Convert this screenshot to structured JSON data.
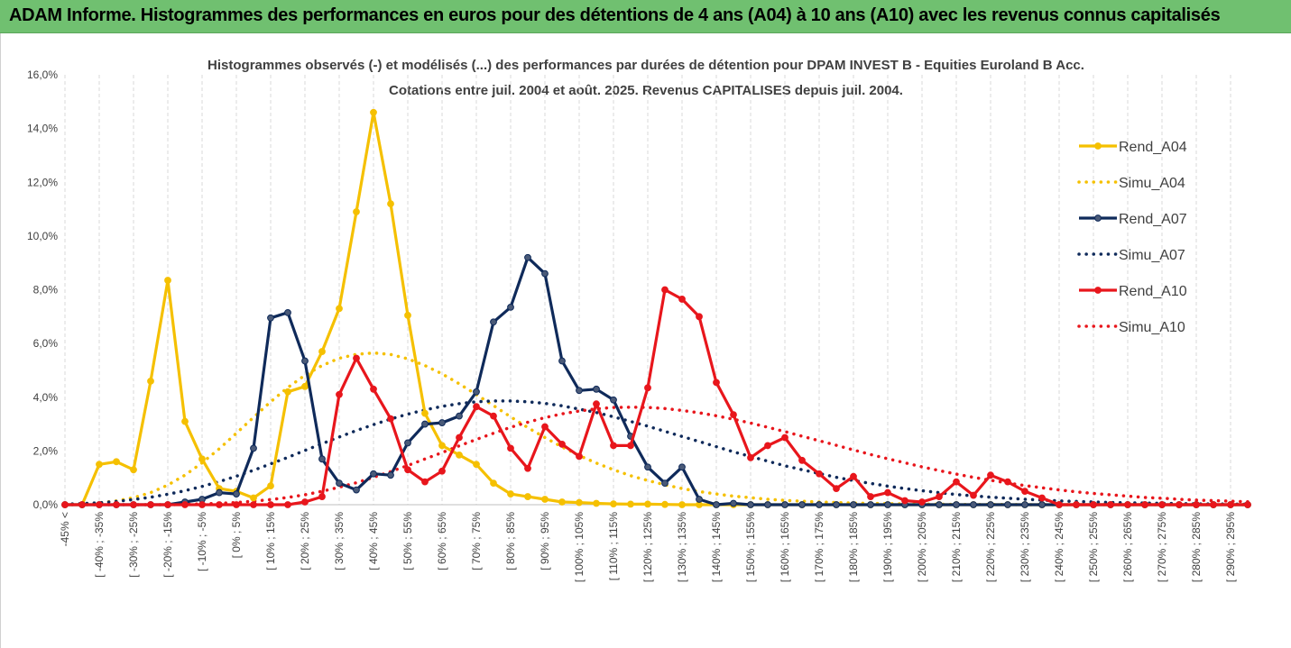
{
  "banner": {
    "title": "ADAM Informe. Histogrammes des performances en euros pour des détentions de 4 ans (A04) à 10 ans (A10) avec les revenus connus capitalisés"
  },
  "chart_data": {
    "type": "line",
    "title": "Histogrammes observés (-) et modélisés (...) des performances par durées de détention pour DPAM INVEST B - Equities Euroland B Acc.",
    "subtitle": "Cotations entre juil. 2004 et août. 2025. Revenus CAPITALISES depuis juil. 2004.",
    "xlabel": "",
    "ylabel": "",
    "ylim": [
      0,
      16
    ],
    "yticks": [
      "0,0%",
      "2,0%",
      "4,0%",
      "6,0%",
      "8,0%",
      "10,0%",
      "12,0%",
      "14,0%",
      "16,0%"
    ],
    "x_tick_labels": [
      "-45% <",
      "[ -40% ; -35%",
      "[ -30% ; -25%",
      "[ -20% ; -15%",
      "[ -10% ; -5%",
      "[ 0% ; 5%",
      "[ 10% ; 15%",
      "[ 20% ; 25%",
      "[ 30% ; 35%",
      "[ 40% ; 45%",
      "[ 50% ; 55%",
      "[ 60% ; 65%",
      "[ 70% ; 75%",
      "[ 80% ; 85%",
      "[ 90% ; 95%",
      "[ 100% ; 105%",
      "[ 110% ; 115%",
      "[ 120% ; 125%",
      "[ 130% ; 135%",
      "[ 140% ; 145%",
      "[ 150% ; 155%",
      "[ 160% ; 165%",
      "[ 170% ; 175%",
      "[ 180% ; 185%",
      "[ 190% ; 195%",
      "[ 200% ; 205%",
      "[ 210% ; 215%",
      "[ 220% ; 225%",
      "[ 230% ; 235%",
      "[ 240% ; 245%",
      "[ 250% ; 255%",
      "[ 260% ; 265%",
      "[ 270% ; 275%",
      "[ 280% ; 285%",
      "[ 290% ; 295%"
    ],
    "categories_count": 70,
    "grid": "vertical-dashed",
    "legend_position": "right",
    "series": [
      {
        "name": "Rend_A04",
        "color": "#f5c000",
        "style": "solid",
        "markers": true,
        "values": [
          0,
          0,
          1.5,
          1.6,
          1.3,
          4.6,
          8.35,
          3.1,
          1.7,
          0.6,
          0.5,
          0.25,
          0.7,
          4.2,
          4.4,
          5.7,
          7.3,
          10.9,
          14.6,
          11.2,
          7.05,
          3.4,
          2.2,
          1.85,
          1.5,
          0.8,
          0.4,
          0.3,
          0.2,
          0.1,
          0.08,
          0.05,
          0.03,
          0.02,
          0.02,
          0.01,
          0,
          0,
          0,
          0,
          0,
          0,
          0,
          0,
          0,
          0,
          0,
          0,
          0,
          0,
          0,
          0,
          0,
          0,
          0,
          0,
          0,
          0,
          0,
          0,
          0,
          0,
          0,
          0,
          0,
          0,
          0,
          0,
          0,
          0
        ]
      },
      {
        "name": "Simu_A04",
        "color": "#f5c000",
        "style": "dotted",
        "markers": false,
        "values": [
          0.01,
          0.03,
          0.07,
          0.14,
          0.26,
          0.45,
          0.73,
          1.1,
          1.56,
          2.08,
          2.66,
          3.25,
          3.83,
          4.36,
          4.82,
          5.18,
          5.45,
          5.6,
          5.65,
          5.59,
          5.43,
          5.18,
          4.87,
          4.5,
          4.1,
          3.69,
          3.27,
          2.87,
          2.5,
          2.15,
          1.83,
          1.55,
          1.3,
          1.08,
          0.9,
          0.74,
          0.6,
          0.49,
          0.4,
          0.32,
          0.26,
          0.2,
          0.16,
          0.13,
          0.1,
          0.08,
          0.06,
          0.05,
          0.04,
          0.03,
          0.02,
          0.02,
          0.01,
          0.01,
          0.01,
          0.01,
          0,
          0,
          0,
          0,
          0,
          0,
          0,
          0,
          0,
          0,
          0,
          0,
          0,
          0
        ]
      },
      {
        "name": "Rend_A07",
        "color": "#0f2a5a",
        "style": "solid",
        "markers": true,
        "values": [
          0,
          0,
          0,
          0,
          0,
          0,
          0,
          0.1,
          0.2,
          0.45,
          0.4,
          2.1,
          6.95,
          7.15,
          5.35,
          1.7,
          0.8,
          0.55,
          1.15,
          1.1,
          2.3,
          3.0,
          3.05,
          3.3,
          4.2,
          6.8,
          7.35,
          9.2,
          8.6,
          5.35,
          4.25,
          4.3,
          3.9,
          2.55,
          1.4,
          0.8,
          1.4,
          0.2,
          0,
          0.05,
          0,
          0,
          0,
          0,
          0,
          0,
          0,
          0,
          0,
          0,
          0,
          0,
          0,
          0,
          0,
          0,
          0,
          0,
          0,
          0,
          0,
          0,
          0,
          0,
          0,
          0,
          0,
          0,
          0,
          0
        ]
      },
      {
        "name": "Simu_A07",
        "color": "#0f2a5a",
        "style": "dotted",
        "markers": false,
        "values": [
          0.02,
          0.04,
          0.07,
          0.12,
          0.19,
          0.28,
          0.39,
          0.52,
          0.68,
          0.86,
          1.06,
          1.28,
          1.52,
          1.76,
          2.02,
          2.27,
          2.52,
          2.76,
          2.98,
          3.19,
          3.37,
          3.53,
          3.66,
          3.76,
          3.83,
          3.86,
          3.86,
          3.83,
          3.77,
          3.68,
          3.56,
          3.43,
          3.27,
          3.1,
          2.92,
          2.73,
          2.54,
          2.35,
          2.16,
          1.97,
          1.79,
          1.62,
          1.45,
          1.3,
          1.16,
          1.02,
          0.9,
          0.79,
          0.69,
          0.6,
          0.52,
          0.45,
          0.38,
          0.33,
          0.28,
          0.24,
          0.2,
          0.17,
          0.14,
          0.12,
          0.1,
          0.08,
          0.07,
          0.06,
          0.05,
          0.04,
          0.03,
          0.03,
          0.02,
          0.02
        ]
      },
      {
        "name": "Rend_A10",
        "color": "#e8161c",
        "style": "solid",
        "markers": true,
        "values": [
          0,
          0,
          0,
          0,
          0,
          0,
          0,
          0,
          0,
          0,
          0,
          0,
          0,
          0,
          0.1,
          0.3,
          4.1,
          5.45,
          4.3,
          3.2,
          1.3,
          0.85,
          1.25,
          2.5,
          3.65,
          3.3,
          2.1,
          1.35,
          2.9,
          2.25,
          1.8,
          3.75,
          2.2,
          2.2,
          4.35,
          8.0,
          7.65,
          7.0,
          4.55,
          3.35,
          1.75,
          2.2,
          2.5,
          1.65,
          1.15,
          0.6,
          1.05,
          0.3,
          0.45,
          0.15,
          0.1,
          0.3,
          0.85,
          0.35,
          1.1,
          0.85,
          0.5,
          0.25,
          0,
          0,
          0,
          0,
          0,
          0,
          0,
          0,
          0,
          0,
          0,
          0
        ]
      },
      {
        "name": "Simu_A10",
        "color": "#e8161c",
        "style": "dotted",
        "markers": false,
        "values": [
          0,
          0,
          0,
          0,
          0,
          0,
          0,
          0.01,
          0.03,
          0.05,
          0.08,
          0.13,
          0.19,
          0.27,
          0.37,
          0.5,
          0.65,
          0.82,
          1.02,
          1.23,
          1.46,
          1.7,
          1.94,
          2.19,
          2.43,
          2.66,
          2.88,
          3.07,
          3.24,
          3.38,
          3.49,
          3.57,
          3.62,
          3.63,
          3.62,
          3.58,
          3.51,
          3.42,
          3.31,
          3.18,
          3.04,
          2.88,
          2.72,
          2.55,
          2.38,
          2.21,
          2.04,
          1.87,
          1.71,
          1.56,
          1.41,
          1.27,
          1.14,
          1.02,
          0.91,
          0.81,
          0.71,
          0.63,
          0.55,
          0.48,
          0.42,
          0.37,
          0.32,
          0.27,
          0.24,
          0.2,
          0.17,
          0.15,
          0.13,
          0.11
        ]
      }
    ]
  }
}
